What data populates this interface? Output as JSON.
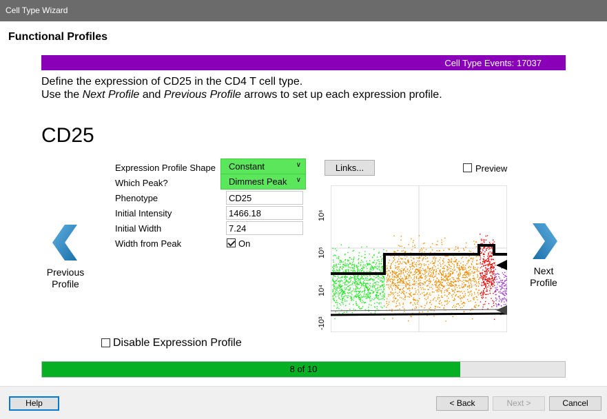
{
  "window": {
    "title": "Cell Type Wizard"
  },
  "page": {
    "heading": "Functional Profiles"
  },
  "events": {
    "label": "Cell Type Events: 17037"
  },
  "instructions": {
    "line1": "Define the expression of CD25 in the CD4 T cell type.",
    "line2_pre": "Use the ",
    "line2_em1": "Next Profile",
    "line2_mid": " and ",
    "line2_em2": "Previous Profile",
    "line2_post": " arrows to set up each expression profile."
  },
  "marker": {
    "name": "CD25"
  },
  "nav": {
    "previous_line1": "Previous",
    "previous_line2": "Profile",
    "next_line1": "Next",
    "next_line2": "Profile"
  },
  "form": {
    "shape_label": "Expression Profile Shape",
    "shape_value": "Constant",
    "peak_label": "Which Peak?",
    "peak_value": "Dimmest Peak",
    "phenotype_label": "Phenotype",
    "phenotype_value": "CD25",
    "intensity_label": "Initial Intensity",
    "intensity_value": "1466.18",
    "width_label": "Initial Width",
    "width_value": "7.24",
    "width_from_peak_label": "Width from Peak",
    "width_from_peak_option": "On",
    "width_from_peak_checked": true
  },
  "links": {
    "label": "Links..."
  },
  "preview": {
    "label": "Preview",
    "checked": false
  },
  "plot": {
    "axis_labels": [
      "10⁶",
      "10⁵",
      "10⁴",
      "-10³"
    ],
    "colors": {
      "green": "#22e822",
      "orange": "#f08c00",
      "red": "#ee0000",
      "purple": "#9a33cc"
    }
  },
  "disable": {
    "label": "Disable Expression Profile",
    "checked": false
  },
  "progress": {
    "label": "8 of 10",
    "current": 8,
    "total": 10
  },
  "footer": {
    "help": "Help",
    "back": "< Back",
    "next": "Next >",
    "cancel": "Cancel"
  }
}
